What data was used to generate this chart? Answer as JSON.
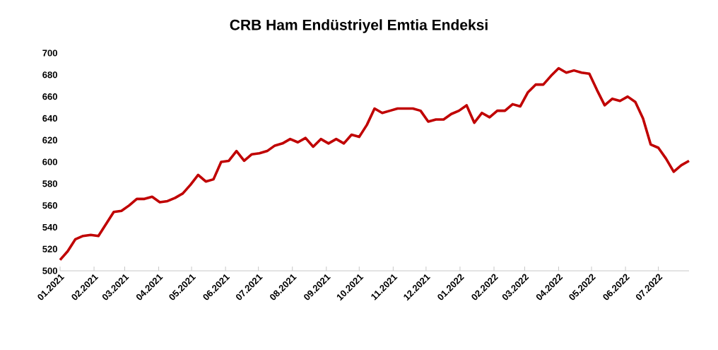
{
  "chart_data": {
    "type": "line",
    "title": "CRB Ham Endüstriyel Emtia Endeksi",
    "x": [
      "2021-01-01",
      "2021-01-08",
      "2021-01-15",
      "2021-01-22",
      "2021-01-29",
      "2021-02-05",
      "2021-02-12",
      "2021-02-19",
      "2021-02-26",
      "2021-03-05",
      "2021-03-12",
      "2021-03-19",
      "2021-03-26",
      "2021-04-02",
      "2021-04-09",
      "2021-04-16",
      "2021-04-23",
      "2021-04-30",
      "2021-05-07",
      "2021-05-14",
      "2021-05-21",
      "2021-05-28",
      "2021-06-04",
      "2021-06-11",
      "2021-06-18",
      "2021-06-25",
      "2021-07-02",
      "2021-07-09",
      "2021-07-16",
      "2021-07-23",
      "2021-07-30",
      "2021-08-06",
      "2021-08-13",
      "2021-08-20",
      "2021-08-27",
      "2021-09-03",
      "2021-09-10",
      "2021-09-17",
      "2021-09-24",
      "2021-10-01",
      "2021-10-08",
      "2021-10-15",
      "2021-10-22",
      "2021-10-29",
      "2021-11-05",
      "2021-11-12",
      "2021-11-19",
      "2021-11-26",
      "2021-12-03",
      "2021-12-10",
      "2021-12-17",
      "2021-12-24",
      "2021-12-31",
      "2022-01-07",
      "2022-01-14",
      "2022-01-21",
      "2022-01-28",
      "2022-02-04",
      "2022-02-11",
      "2022-02-18",
      "2022-02-25",
      "2022-03-04",
      "2022-03-11",
      "2022-03-18",
      "2022-03-25",
      "2022-04-01",
      "2022-04-08",
      "2022-04-15",
      "2022-04-22",
      "2022-04-29",
      "2022-05-06",
      "2022-05-13",
      "2022-05-20",
      "2022-05-27",
      "2022-06-03",
      "2022-06-10",
      "2022-06-17",
      "2022-06-24",
      "2022-07-01",
      "2022-07-08",
      "2022-07-15",
      "2022-07-22",
      "2022-07-29"
    ],
    "series": [
      {
        "color": "#c00000",
        "values": [
          510,
          518,
          529,
          532,
          533,
          532,
          543,
          554,
          555,
          560,
          566,
          566,
          568,
          563,
          564,
          567,
          571,
          579,
          588,
          582,
          584,
          600,
          601,
          610,
          601,
          607,
          608,
          610,
          615,
          617,
          621,
          618,
          622,
          614,
          621,
          617,
          621,
          617,
          625,
          623,
          634,
          649,
          645,
          647,
          649,
          649,
          649,
          647,
          637,
          639,
          639,
          644,
          647,
          652,
          636,
          645,
          641,
          647,
          647,
          653,
          651,
          664,
          671,
          671,
          679,
          686,
          682,
          684,
          682,
          681,
          666,
          652,
          658,
          656,
          660,
          655,
          640,
          616,
          613,
          603,
          591,
          597,
          601
        ]
      }
    ],
    "xlim": [
      "2021-01-01",
      "2022-07-29"
    ],
    "xticks": [
      {
        "value": "2021-01-01",
        "label": "01.2021"
      },
      {
        "value": "2021-02-01",
        "label": "02.2021"
      },
      {
        "value": "2021-03-01",
        "label": "03.2021"
      },
      {
        "value": "2021-04-01",
        "label": "04.2021"
      },
      {
        "value": "2021-05-01",
        "label": "05.2021"
      },
      {
        "value": "2021-06-01",
        "label": "06.2021"
      },
      {
        "value": "2021-07-01",
        "label": "07.2021"
      },
      {
        "value": "2021-08-01",
        "label": "08.2021"
      },
      {
        "value": "2021-09-01",
        "label": "09.2021"
      },
      {
        "value": "2021-10-01",
        "label": "10.2021"
      },
      {
        "value": "2021-11-01",
        "label": "11.2021"
      },
      {
        "value": "2021-12-01",
        "label": "12.2021"
      },
      {
        "value": "2022-01-01",
        "label": "01.2022"
      },
      {
        "value": "2022-02-01",
        "label": "02.2022"
      },
      {
        "value": "2022-03-01",
        "label": "03.2022"
      },
      {
        "value": "2022-04-01",
        "label": "04.2022"
      },
      {
        "value": "2022-05-01",
        "label": "05.2022"
      },
      {
        "value": "2022-06-01",
        "label": "06.2022"
      },
      {
        "value": "2022-07-01",
        "label": "07.2022"
      }
    ],
    "ylim": [
      500,
      700
    ],
    "yticks": [
      500,
      520,
      540,
      560,
      580,
      600,
      620,
      640,
      660,
      680,
      700
    ],
    "grid": false,
    "legend": false,
    "marker": "none",
    "line_style": "solid"
  }
}
